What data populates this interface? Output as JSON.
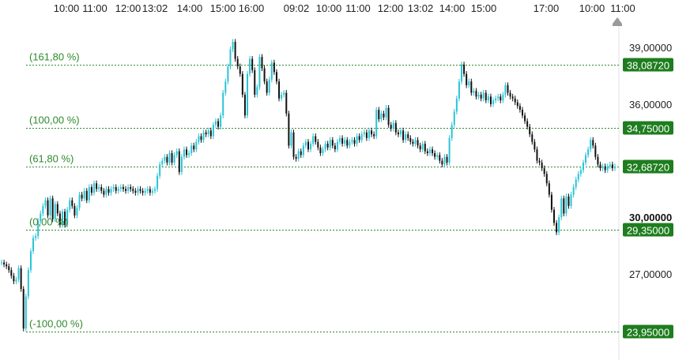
{
  "colors": {
    "fib_green": "#2e8b2e",
    "badge_green": "#1e7d1e",
    "candle_up": "#29c4d6",
    "candle_down": "#111111",
    "axis_line": "#e3e3e3",
    "scroll_marker": "#9a9a9a"
  },
  "scroll_marker_icon": "home-arrow-icon",
  "chart_data": {
    "type": "line",
    "x_ticks": [
      "10:00",
      "11:00",
      "12:00",
      "13:02",
      "14:00",
      "15:00",
      "16:00",
      "09:02",
      "10:00",
      "11:00",
      "12:00",
      "13:02",
      "14:00",
      "15:00",
      "17:00",
      "10:00",
      "11:00"
    ],
    "y_ticks": [
      "39,00000",
      "36,00000",
      "30,00000",
      "27,00000"
    ],
    "y_ticks_values": [
      39,
      36,
      30,
      27
    ],
    "y_bold_tick": "30,00000",
    "ylim": [
      22.6,
      40.6
    ],
    "fib_levels": [
      {
        "label": "(161,80 %)",
        "value": 38.0872,
        "badge": "38,08720"
      },
      {
        "label": "(100,00 %)",
        "value": 34.75,
        "badge": "34,75000"
      },
      {
        "label": "(61,80 %)",
        "value": 32.6872,
        "badge": "32,68720"
      },
      {
        "label": "(0,00 %)",
        "value": 29.35,
        "badge": "29,35000"
      },
      {
        "label": "(-100,00 %)",
        "value": 23.95,
        "badge": "23,95000"
      }
    ],
    "series": [
      {
        "values": [
          27.6,
          27.5,
          27.4,
          27.2,
          26.9,
          26.6,
          26.7,
          27.3,
          26.2,
          24.1,
          25.8,
          27.2,
          28.2,
          28.9,
          29.0,
          29.8,
          30.2,
          30.6,
          30.9,
          30.1,
          31.0,
          29.9,
          30.7,
          30.2,
          29.6,
          30.3,
          29.6,
          30.4,
          30.9,
          30.6,
          30.1,
          30.5,
          31.2,
          31.0,
          31.4,
          30.9,
          31.6,
          31.3,
          31.8,
          31.5,
          31.6,
          31.4,
          31.2,
          31.5,
          31.3,
          31.5,
          31.6,
          31.4,
          31.5,
          31.6,
          31.5,
          31.4,
          31.6,
          31.5,
          31.4,
          31.3,
          31.5,
          31.4,
          31.3,
          31.4,
          31.5,
          31.3,
          31.4,
          31.5,
          32.2,
          32.8,
          33.0,
          33.2,
          32.9,
          33.4,
          32.9,
          33.3,
          33.5,
          32.4,
          33.2,
          33.6,
          33.3,
          33.4,
          33.8,
          33.6,
          34.0,
          34.3,
          34.1,
          34.5,
          34.4,
          34.6,
          34.3,
          34.9,
          35.1,
          34.8,
          35.4,
          36.6,
          37.2,
          38.0,
          38.9,
          39.3,
          38.4,
          38.0,
          37.6,
          36.5,
          35.4,
          37.6,
          38.4,
          37.8,
          36.5,
          36.9,
          38.5,
          37.9,
          37.2,
          36.6,
          37.3,
          38.2,
          37.7,
          37.2,
          36.3,
          36.5,
          36.6,
          35.5,
          33.8,
          34.5,
          33.2,
          33.1,
          33.5,
          33.3,
          33.8,
          34.0,
          33.6,
          33.9,
          34.3,
          34.0,
          33.7,
          33.4,
          33.6,
          33.9,
          33.7,
          34.1,
          33.8,
          33.6,
          34.0,
          34.2,
          33.9,
          34.1,
          33.8,
          34.0,
          34.1,
          33.9,
          34.3,
          34.1,
          34.4,
          34.5,
          34.2,
          34.6,
          34.4,
          34.3,
          35.7,
          35.2,
          35.5,
          35.3,
          35.8,
          34.9,
          34.7,
          35.0,
          34.5,
          34.4,
          34.6,
          34.1,
          34.4,
          34.2,
          34.0,
          33.9,
          34.1,
          33.8,
          33.6,
          33.9,
          33.5,
          33.4,
          33.6,
          33.4,
          33.2,
          33.3,
          33.0,
          32.8,
          33.2,
          32.9,
          34.2,
          34.9,
          35.6,
          36.3,
          37.2,
          38.1,
          37.6,
          37.0,
          37.2,
          36.6,
          36.7,
          36.4,
          36.5,
          36.3,
          36.6,
          36.2,
          36.4,
          36.0,
          36.2,
          36.3,
          36.4,
          36.2,
          36.5,
          37.0,
          36.6,
          36.4,
          36.3,
          36.1,
          35.9,
          35.7,
          35.4,
          35.1,
          34.8,
          34.4,
          34.0,
          33.6,
          33.0,
          32.9,
          32.6,
          32.3,
          31.8,
          31.2,
          30.4,
          29.7,
          29.2,
          30.0,
          31.0,
          30.2,
          31.1,
          30.6,
          31.2,
          31.6,
          32.0,
          32.3,
          32.5,
          32.9,
          33.3,
          33.6,
          34.1,
          33.8,
          33.2,
          32.8,
          32.6,
          32.7,
          32.5,
          32.7,
          32.8,
          32.6,
          32.7
        ]
      }
    ]
  }
}
